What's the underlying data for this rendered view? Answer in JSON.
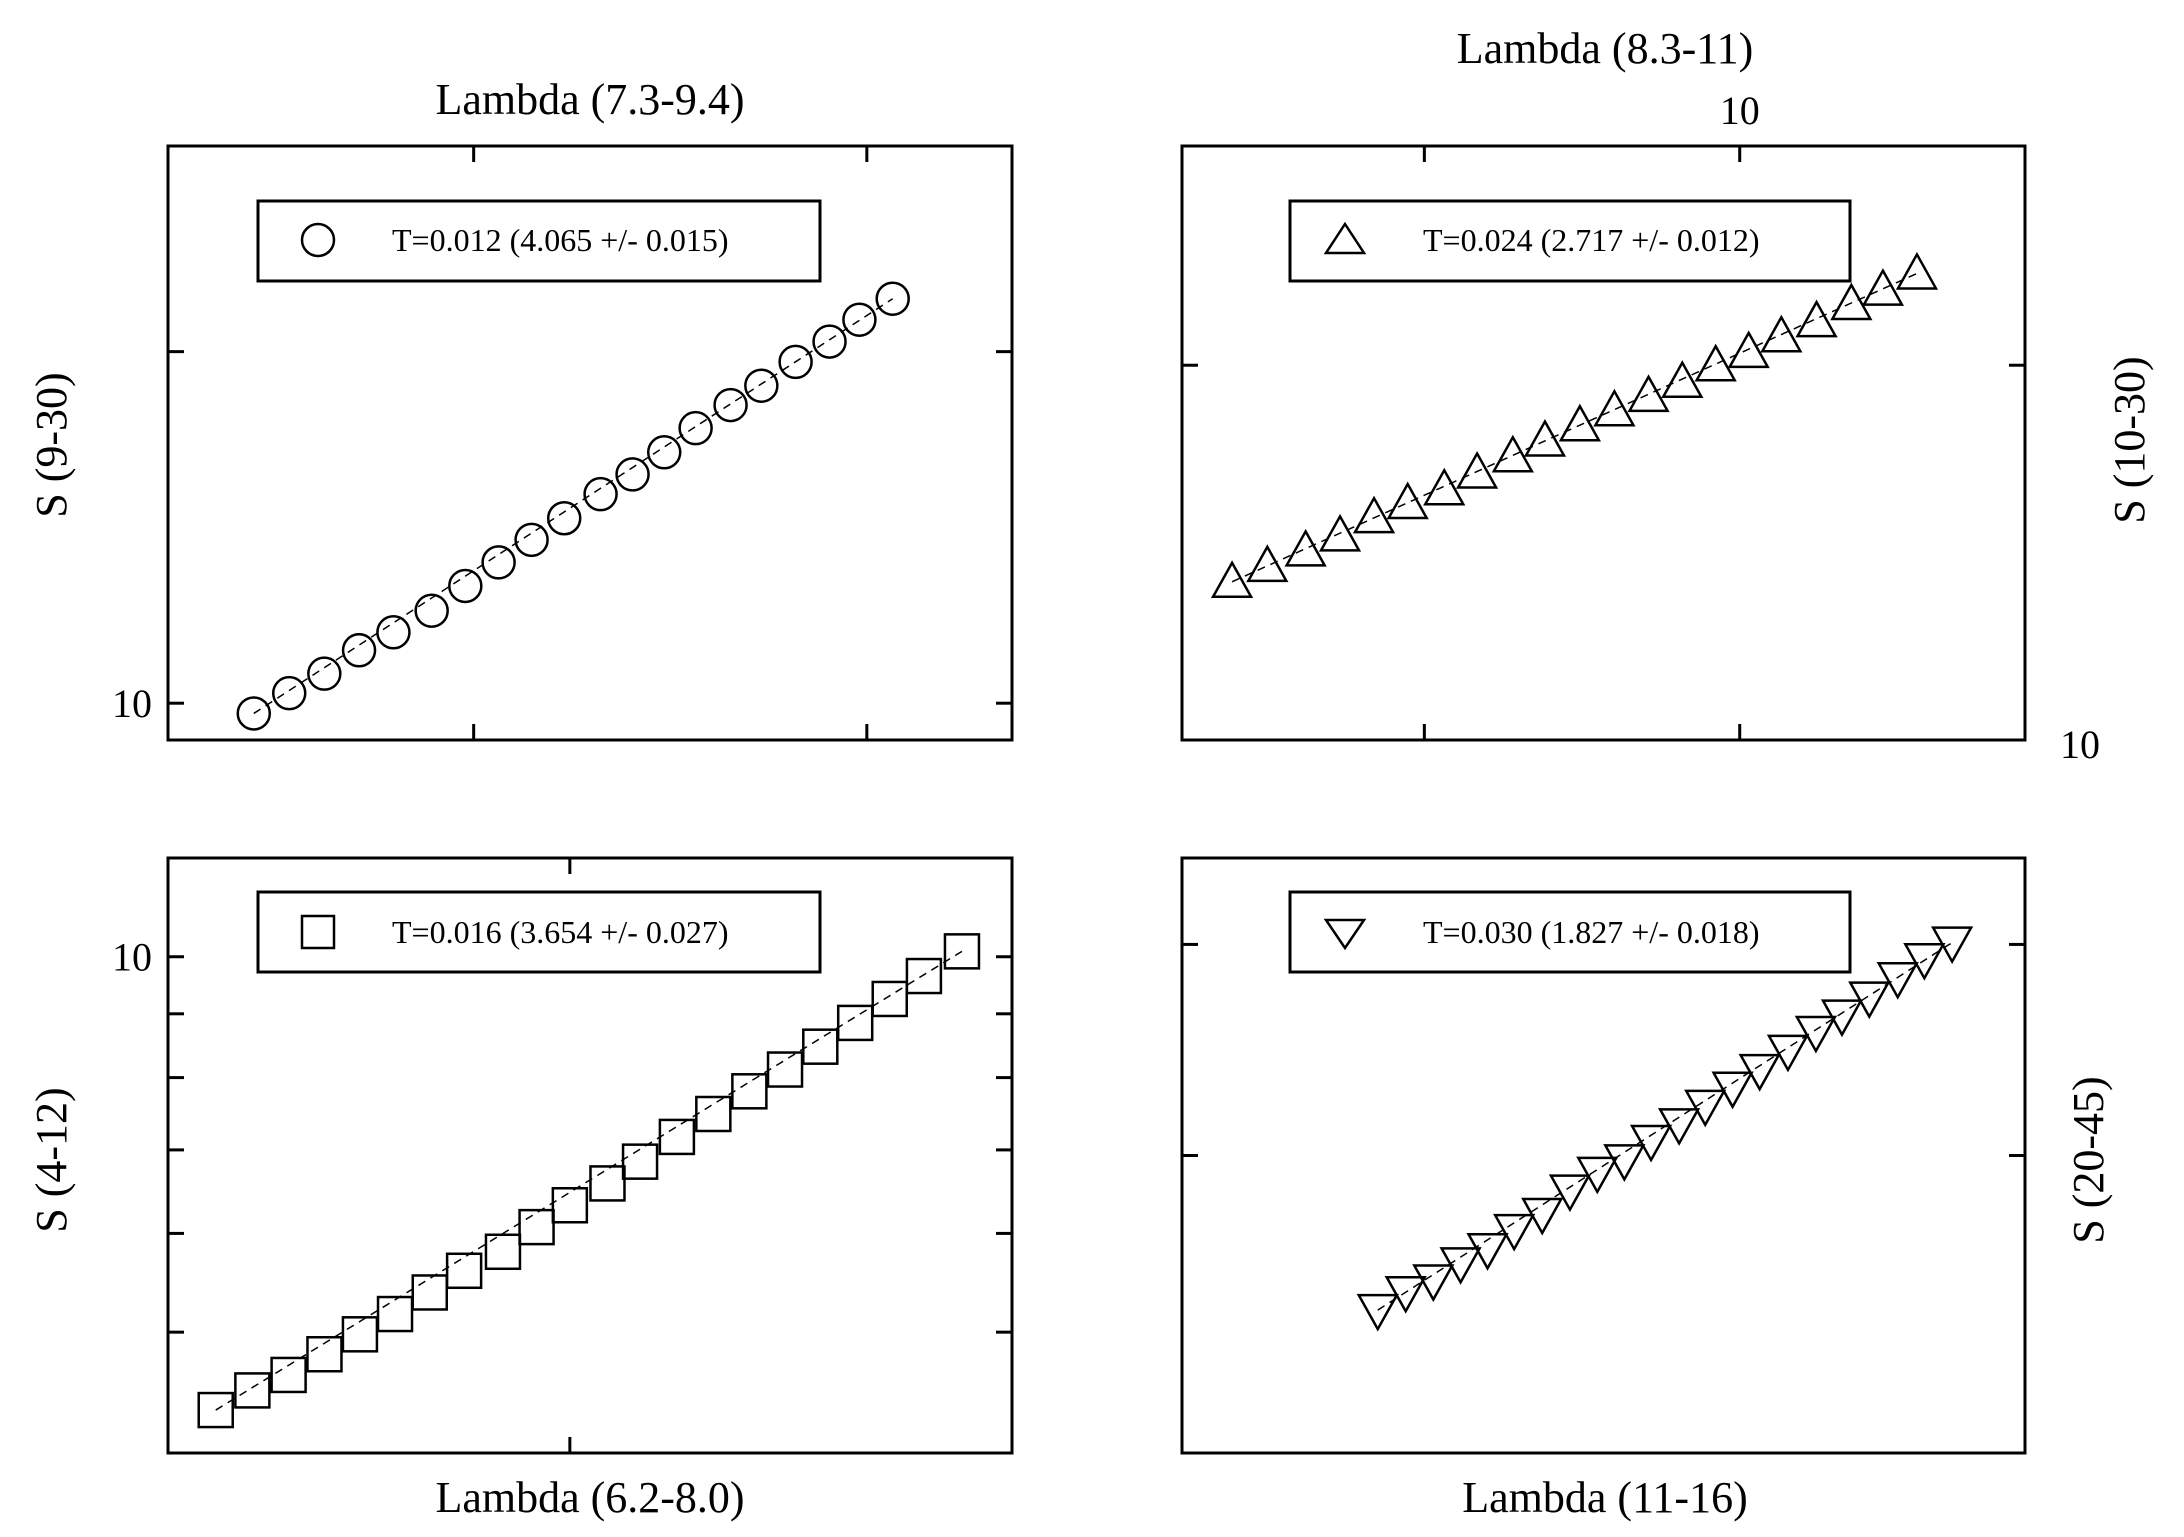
{
  "chart_data": [
    {
      "type": "scatter",
      "xlabel": "Lambda (7.3-9.4)",
      "ylabel": "S (9-30)",
      "x_scale": "log",
      "y_scale": "log",
      "xlim": [
        7.3,
        9.4
      ],
      "ylim": [
        9.3,
        30
      ],
      "x_ticks": [
        8.0,
        9.0
      ],
      "x_tick_labels": [
        "",
        ""
      ],
      "y_ticks": [
        10,
        20
      ],
      "y_tick_labels": [
        "10",
        ""
      ],
      "marker": "circle",
      "fit_line": true,
      "series": [
        {
          "name": "T=0.012 (4.065 +/- 0.015)",
          "x": [
            7.49,
            7.57,
            7.65,
            7.73,
            7.81,
            7.9,
            7.98,
            8.06,
            8.14,
            8.22,
            8.31,
            8.39,
            8.47,
            8.55,
            8.64,
            8.72,
            8.81,
            8.9,
            8.98,
            9.07
          ],
          "y": [
            9.8,
            10.2,
            10.6,
            11.1,
            11.5,
            12.0,
            12.6,
            13.2,
            13.8,
            14.4,
            15.1,
            15.7,
            16.4,
            17.2,
            18.0,
            18.7,
            19.6,
            20.4,
            21.3,
            22.2
          ]
        }
      ]
    },
    {
      "type": "scatter",
      "title": "Lambda (8.3-11)",
      "ylabel": "S (10-30)",
      "x_scale": "log",
      "y_scale": "log",
      "xlim": [
        8.3,
        11
      ],
      "ylim": [
        10,
        30
      ],
      "x_ticks": [
        9.0,
        10.0
      ],
      "x_tick_labels": [
        "",
        "10"
      ],
      "y_ticks": [
        10,
        20
      ],
      "y_tick_labels": [
        "10",
        ""
      ],
      "marker": "triangle-up",
      "fit_line": true,
      "series": [
        {
          "name": "T=0.024 (2.717 +/- 0.012)",
          "x": [
            8.44,
            8.54,
            8.65,
            8.75,
            8.85,
            8.95,
            9.06,
            9.16,
            9.27,
            9.37,
            9.48,
            9.59,
            9.7,
            9.81,
            9.92,
            10.03,
            10.14,
            10.26,
            10.38,
            10.49,
            10.61
          ],
          "y": [
            13.4,
            13.8,
            14.2,
            14.6,
            15.1,
            15.5,
            15.9,
            16.4,
            16.9,
            17.4,
            17.9,
            18.4,
            18.9,
            19.4,
            20.0,
            20.5,
            21.1,
            21.7,
            22.4,
            23.0,
            23.7
          ]
        }
      ]
    },
    {
      "type": "scatter",
      "xlabel": "Lambda (6.2-8.0)",
      "ylabel": "S (4-12)",
      "x_scale": "log",
      "y_scale": "log",
      "xlim": [
        6.2,
        8.0
      ],
      "ylim": [
        4,
        12
      ],
      "x_ticks": [
        7.0
      ],
      "x_tick_labels": [
        ""
      ],
      "y_ticks": [
        5,
        6,
        7,
        8,
        9,
        10
      ],
      "y_tick_labels": [
        "",
        "",
        "",
        "",
        "",
        "10"
      ],
      "marker": "square",
      "fit_line": true,
      "series": [
        {
          "name": "T=0.016 (3.654 +/- 0.027)",
          "x": [
            6.29,
            6.36,
            6.43,
            6.5,
            6.57,
            6.64,
            6.71,
            6.78,
            6.86,
            6.93,
            7.0,
            7.08,
            7.15,
            7.23,
            7.31,
            7.39,
            7.47,
            7.55,
            7.63,
            7.71,
            7.79,
            7.88
          ],
          "y": [
            4.33,
            4.49,
            4.62,
            4.8,
            4.98,
            5.17,
            5.38,
            5.6,
            5.8,
            6.07,
            6.32,
            6.58,
            6.85,
            7.17,
            7.48,
            7.8,
            8.12,
            8.47,
            8.85,
            9.25,
            9.65,
            10.1
          ]
        }
      ]
    },
    {
      "type": "scatter",
      "xlabel": "Lambda (11-16)",
      "ylabel": "S (20-45)",
      "x_scale": "log",
      "y_scale": "log",
      "xlim": [
        11,
        16
      ],
      "ylim": [
        20,
        45
      ],
      "x_ticks": [],
      "x_tick_labels": [],
      "y_ticks": [
        30,
        40
      ],
      "y_tick_labels": [
        "",
        ""
      ],
      "marker": "triangle-down",
      "fit_line": true,
      "series": [
        {
          "name": "T=0.030 (1.827 +/- 0.018)",
          "x": [
            12.0,
            12.15,
            12.3,
            12.45,
            12.6,
            12.75,
            12.91,
            13.07,
            13.23,
            13.39,
            13.55,
            13.72,
            13.88,
            14.05,
            14.22,
            14.4,
            14.58,
            14.75,
            14.93,
            15.12,
            15.3,
            15.49
          ],
          "y": [
            24.3,
            24.9,
            25.3,
            25.9,
            26.4,
            27.1,
            27.7,
            28.6,
            29.3,
            29.8,
            30.6,
            31.3,
            32.1,
            32.9,
            33.7,
            34.6,
            35.5,
            36.3,
            37.2,
            38.2,
            39.2,
            40.1
          ]
        }
      ]
    }
  ]
}
